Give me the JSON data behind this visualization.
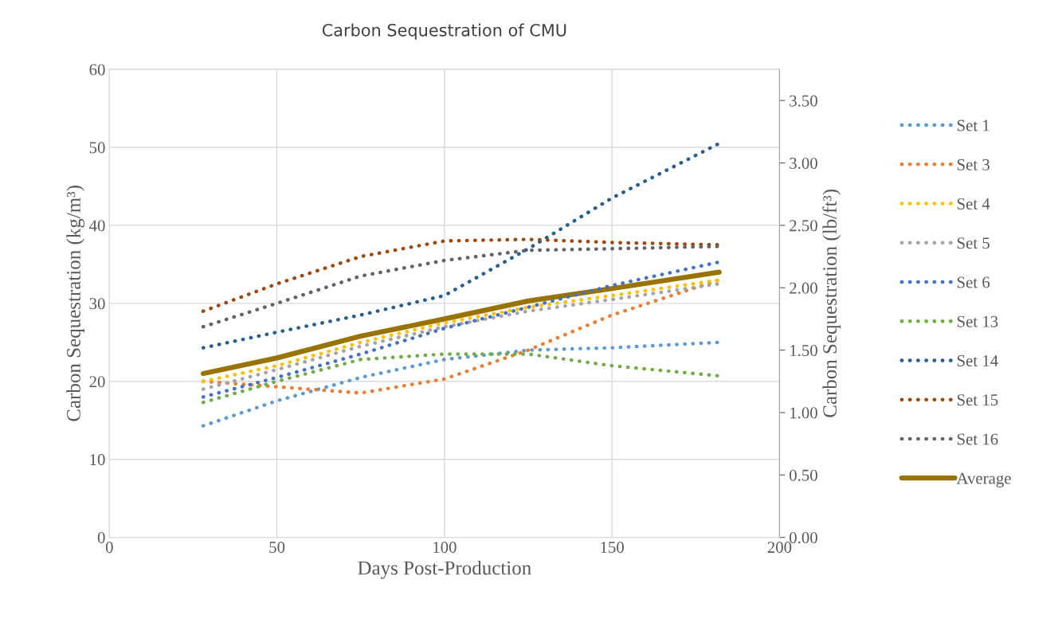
{
  "chart_data": {
    "type": "line",
    "title": "Carbon Sequestration of CMU",
    "xlabel": "Days Post-Production",
    "ylabel": "Carbon Sequestration (kg/m³)",
    "y2label": "Carbon Sequestration (lb/ft³)",
    "x": [
      28,
      50,
      75,
      100,
      125,
      150,
      182
    ],
    "xlim": [
      0,
      200
    ],
    "xticks": [
      0,
      50,
      100,
      150,
      200
    ],
    "ylim": [
      0,
      60
    ],
    "yticks": [
      0,
      10,
      20,
      30,
      40,
      50,
      60
    ],
    "y2lim": [
      0,
      3.75
    ],
    "y2ticks": [
      {
        "value": 0,
        "label": "0.00"
      },
      {
        "value": 0.5,
        "label": "0.50"
      },
      {
        "value": 1,
        "label": "1.00"
      },
      {
        "value": 1.5,
        "label": "1.50"
      },
      {
        "value": 2,
        "label": "2.00"
      },
      {
        "value": 2.5,
        "label": "2.50"
      },
      {
        "value": 3,
        "label": "3.00"
      },
      {
        "value": 3.5,
        "label": "3.50"
      }
    ],
    "grid": true,
    "legend": "right",
    "marker": "none",
    "series": [
      {
        "name": "Set 1",
        "color": "#5b9bd5",
        "line_style": "dotted",
        "values": [
          14.3,
          17.5,
          20.5,
          22.8,
          24,
          24.3,
          25
        ]
      },
      {
        "name": "Set 3",
        "color": "#ed7d31",
        "line_style": "dotted",
        "values": [
          20,
          19.3,
          18.5,
          20.3,
          24,
          28.5,
          33
        ]
      },
      {
        "name": "Set 4",
        "color": "#ffc000",
        "line_style": "dotted",
        "values": [
          20,
          22,
          25,
          27.5,
          29.5,
          31,
          33
        ]
      },
      {
        "name": "Set 5",
        "color": "#a5a5a5",
        "line_style": "dotted",
        "values": [
          19,
          21.5,
          24.5,
          27,
          29,
          30.5,
          32.5
        ]
      },
      {
        "name": "Set 6",
        "color": "#4472c4",
        "line_style": "dotted",
        "values": [
          18,
          20.5,
          23.5,
          26.8,
          29.5,
          32.3,
          35.3
        ]
      },
      {
        "name": "Set 13",
        "color": "#70ad47",
        "line_style": "dotted",
        "values": [
          17.3,
          20,
          22.8,
          23.5,
          23.5,
          22,
          20.7
        ]
      },
      {
        "name": "Set 14",
        "color": "#255e91",
        "line_style": "dotted",
        "values": [
          24.3,
          26.3,
          28.5,
          31,
          37,
          43.5,
          50.5
        ]
      },
      {
        "name": "Set 15",
        "color": "#9e480e",
        "line_style": "dotted",
        "values": [
          29,
          32.5,
          36,
          38,
          38.2,
          37.8,
          37.5
        ]
      },
      {
        "name": "Set 16",
        "color": "#636363",
        "line_style": "dotted",
        "values": [
          27,
          30,
          33.5,
          35.5,
          36.8,
          37,
          37.3
        ]
      },
      {
        "name": "Average",
        "color": "#997300",
        "line_style": "solid",
        "values": [
          21,
          23,
          25.8,
          28,
          30.3,
          31.9,
          34
        ]
      }
    ]
  }
}
